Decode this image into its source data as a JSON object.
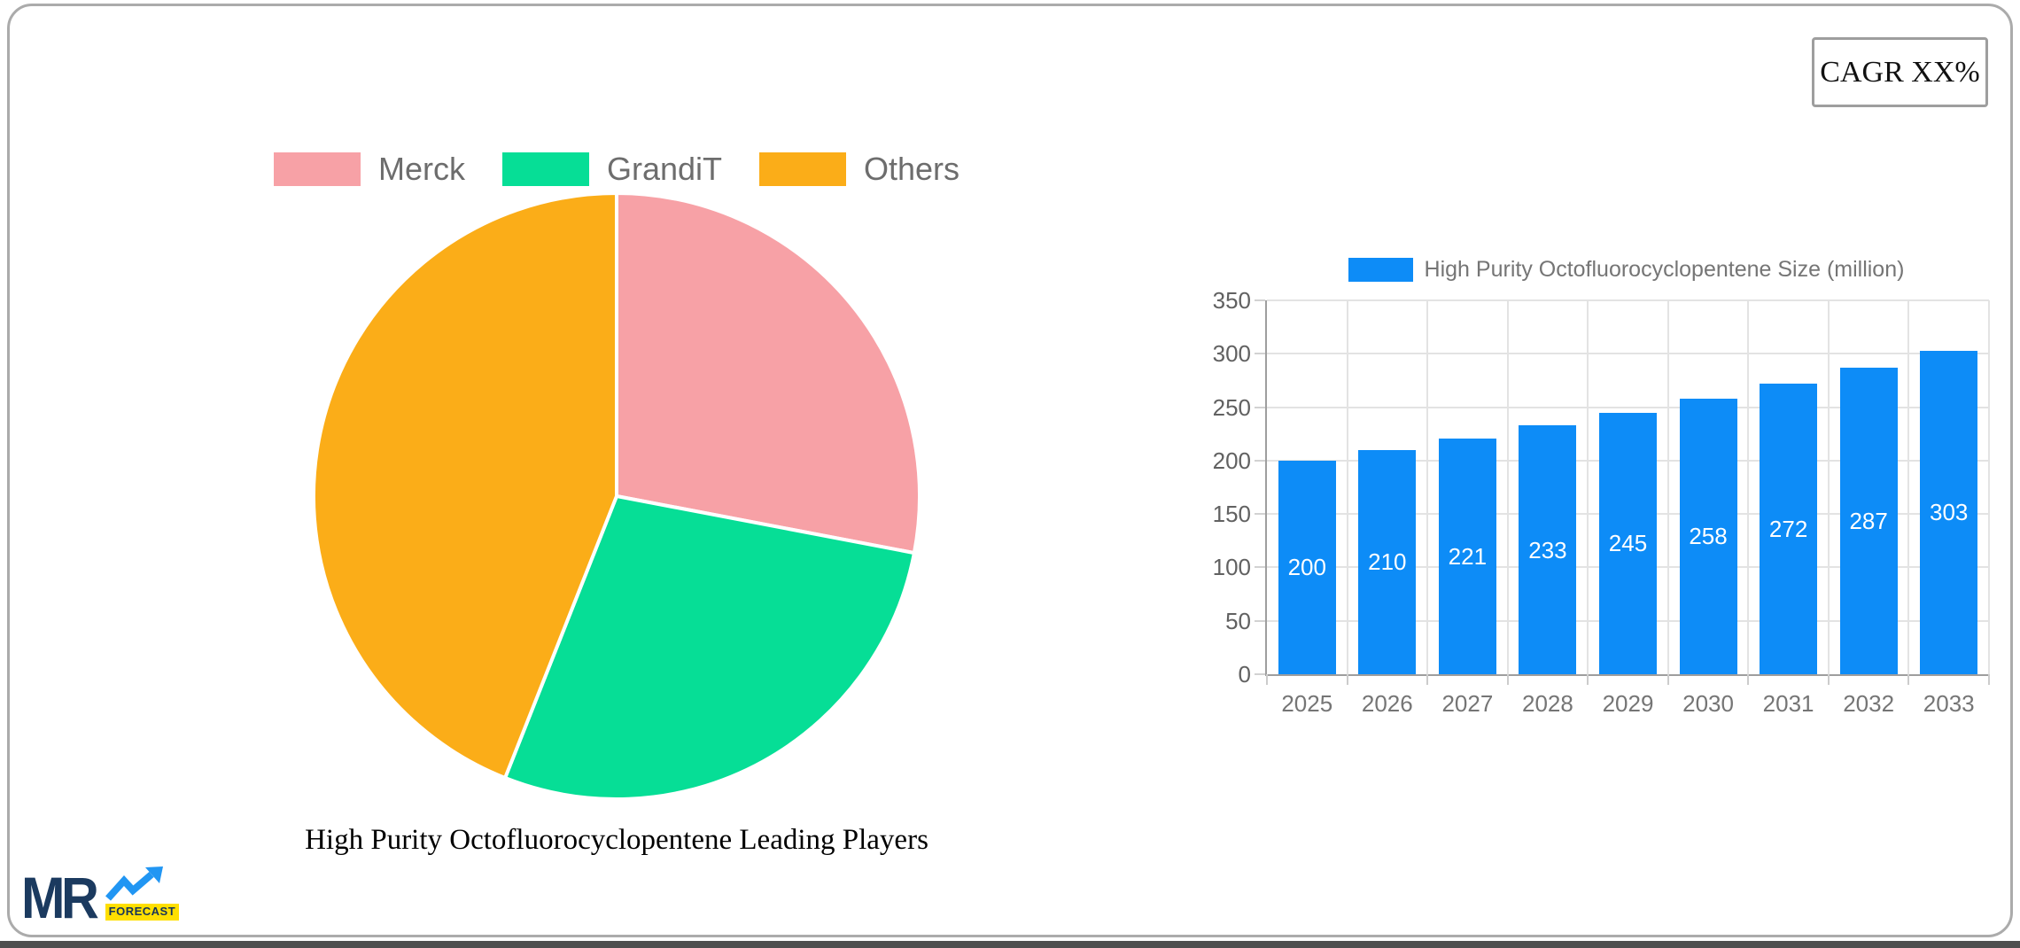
{
  "cagr": {
    "label": "CAGR XX%"
  },
  "logo": {
    "mr": "MR",
    "forecast": "FORECAST"
  },
  "colors": {
    "bar_blue": "#0d8cf7",
    "pie_pink": "#f7a1a6",
    "pie_green": "#06de96",
    "pie_orange": "#fbad18",
    "grid": "#e3e3e3",
    "axis": "#9e9e9e",
    "legend_text": "#6d6d6d",
    "tick_text": "#616161"
  },
  "chart_data": [
    {
      "type": "pie",
      "title": "High Purity Octofluorocyclopentene Leading Players",
      "labels": [
        "Merck",
        "GrandiT",
        "Others"
      ],
      "values": [
        28,
        28,
        44
      ],
      "colors": [
        "#f7a1a6",
        "#06de96",
        "#fbad18"
      ],
      "legend_position": "top",
      "start_angle_deg": 0,
      "direction": "clockwise"
    },
    {
      "type": "bar",
      "legend": "High Purity Octofluorocyclopentene Size (million)",
      "categories": [
        "2025",
        "2026",
        "2027",
        "2028",
        "2029",
        "2030",
        "2031",
        "2032",
        "2033"
      ],
      "values": [
        200,
        210,
        221,
        233,
        245,
        258,
        272,
        287,
        303
      ],
      "bar_color": "#0d8cf7",
      "value_label_color": "#ffffff",
      "ylim": [
        0,
        350
      ],
      "yticks": [
        0,
        50,
        100,
        150,
        200,
        250,
        300,
        350
      ],
      "grid": true,
      "legend_position": "top"
    }
  ]
}
